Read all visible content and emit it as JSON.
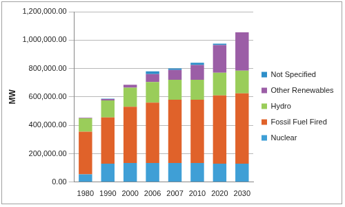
{
  "chart_data": {
    "type": "bar",
    "stacked": true,
    "legend": "right",
    "grid": true,
    "y_label": "MW",
    "categories": [
      "1980",
      "1990",
      "2000",
      "2006",
      "2007",
      "2010",
      "2020",
      "2030"
    ],
    "series": [
      {
        "name": "Nuclear",
        "color": "#3f9fd6",
        "values": [
          55000,
          130000,
          135000,
          135000,
          135000,
          135000,
          130000,
          130000
        ]
      },
      {
        "name": "Fossil Fuel Fired",
        "color": "#e0622a",
        "values": [
          300000,
          325000,
          395000,
          425000,
          445000,
          445000,
          480000,
          495000
        ]
      },
      {
        "name": "Hydro",
        "color": "#9acd5a",
        "values": [
          95000,
          120000,
          135000,
          145000,
          140000,
          140000,
          160000,
          160000
        ]
      },
      {
        "name": "Other Renewables",
        "color": "#9b5ea6",
        "values": [
          3000,
          10000,
          20000,
          55000,
          70000,
          105000,
          195000,
          270000
        ]
      },
      {
        "name": "Not Specified",
        "color": "#2e8fc9",
        "values": [
          0,
          2000,
          0,
          20000,
          10000,
          15000,
          10000,
          0
        ]
      }
    ],
    "ylim": [
      0,
      1200000
    ],
    "yticks": [
      {
        "value": 0,
        "label": "0.00"
      },
      {
        "value": 200000,
        "label": "200,000.00"
      },
      {
        "value": 400000,
        "label": "400,000.00"
      },
      {
        "value": 600000,
        "label": "600,000.00"
      },
      {
        "value": 800000,
        "label": "800,000.00"
      },
      {
        "value": 1000000,
        "label": "1,000,000.00"
      },
      {
        "value": 1200000,
        "label": "1,200,000.00"
      }
    ]
  }
}
